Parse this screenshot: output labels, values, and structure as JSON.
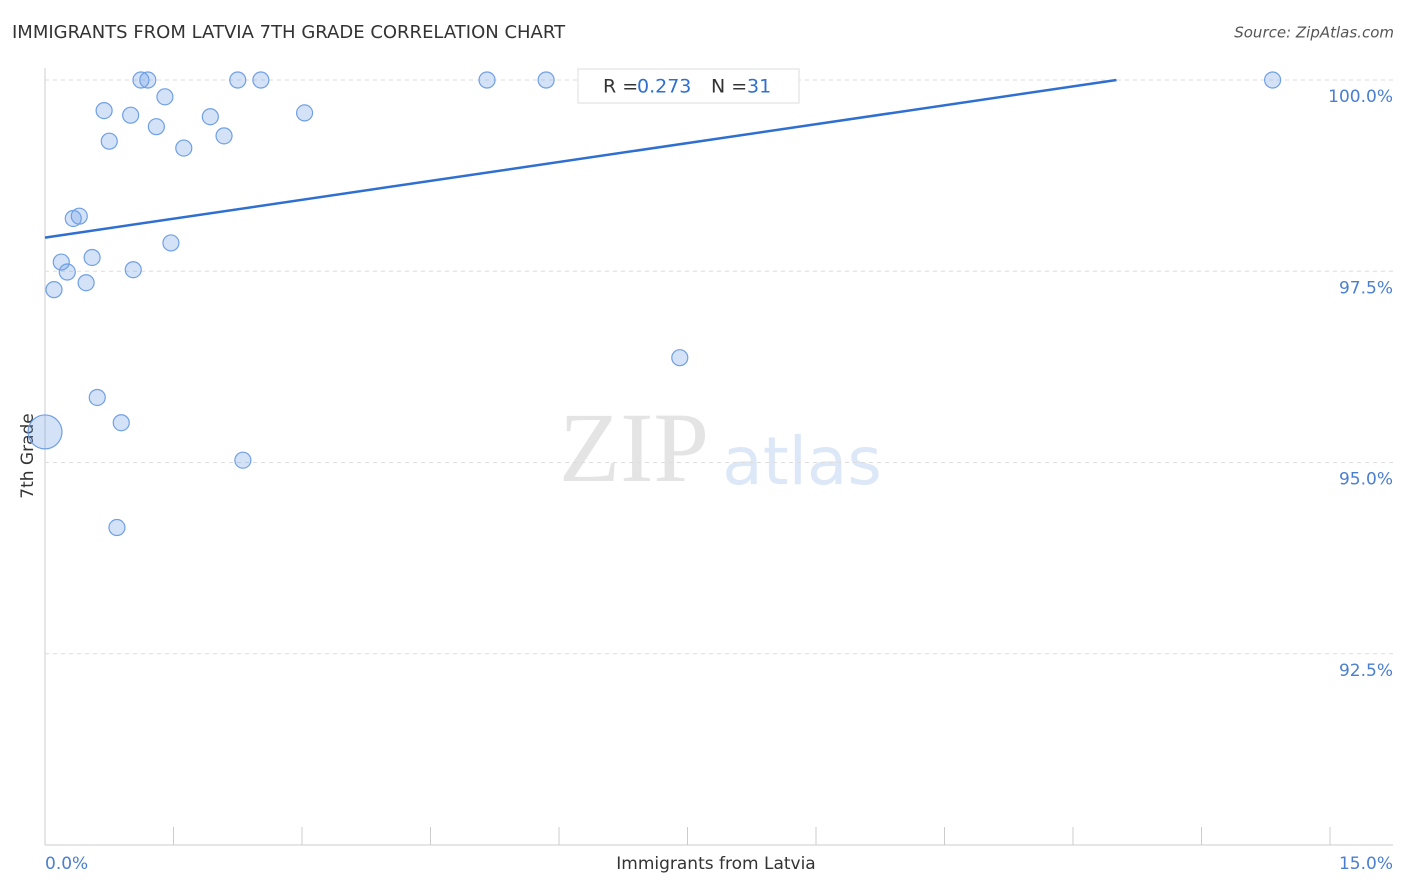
{
  "chart_data": {
    "type": "scatter",
    "title": "IMMIGRANTS FROM LATVIA 7TH GRADE CORRELATION CHART",
    "source": "Source: ZipAtlas.com",
    "x_label": "Immigrants from Latvia",
    "y_label": "7th Grade",
    "watermark": [
      "ZIP",
      "atlas"
    ],
    "stats": {
      "r_label": "R =",
      "r": 0.273,
      "n_label": "N =",
      "n": 31
    },
    "x": [
      0.105,
      0.19,
      0.26,
      0.33,
      0.4,
      0.48,
      0.55,
      0.61,
      0.69,
      0.75,
      0.84,
      0.89,
      1.0,
      1.03,
      1.12,
      1.2,
      1.3,
      1.4,
      1.47,
      1.62,
      1.93,
      2.09,
      2.25,
      2.31,
      2.52,
      3.03,
      5.16,
      5.85,
      7.41,
      14.33,
      0.0
    ],
    "values": [
      97.26,
      97.62,
      97.49,
      98.19,
      98.22,
      97.35,
      97.68,
      95.85,
      99.6,
      99.2,
      94.15,
      95.52,
      99.54,
      97.52,
      100,
      100,
      99.39,
      99.78,
      97.87,
      99.11,
      99.52,
      99.27,
      100,
      95.03,
      100,
      99.57,
      100,
      100,
      96.37,
      100,
      95.4
    ],
    "sizes": [
      1,
      1,
      1,
      1,
      1,
      1,
      1,
      1,
      1,
      1,
      1,
      1,
      1,
      1,
      1,
      1,
      1,
      1,
      1,
      1,
      1,
      1,
      1,
      1,
      1,
      1,
      1,
      1,
      1,
      1,
      4.5
    ],
    "color": "#6f9fe6",
    "line_color": "#2f6fd0",
    "trendline": {
      "intercept": 97.94,
      "slope": 0.1647
    },
    "xlim": [
      0,
      15
    ],
    "xticks": [
      {
        "value": 0,
        "label": "0.0%"
      },
      {
        "value": 15,
        "label": "15.0%"
      }
    ],
    "xminor_ticks": [
      1.5,
      3,
      4.5,
      6,
      7.5,
      9,
      10.5,
      12,
      13.5
    ],
    "ylim": [
      90,
      100
    ],
    "yticks": [
      {
        "value": 92.5,
        "label": "92.5%"
      },
      {
        "value": 95,
        "label": "95.0%"
      },
      {
        "value": 97.5,
        "label": "97.5%"
      },
      {
        "value": 100,
        "label": "100.0%"
      }
    ],
    "grid": true
  }
}
